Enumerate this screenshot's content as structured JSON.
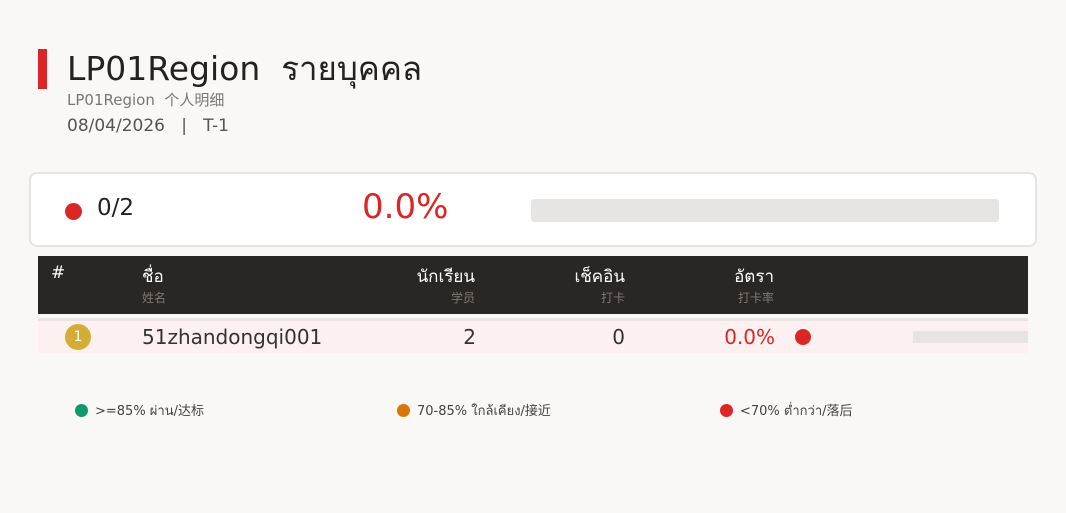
{
  "header": {
    "title": "LP01Region  รายบุคคล",
    "subtitle": "LP01Region  个人明细",
    "date": "08/04/2026",
    "separator": "|",
    "period": "T-1"
  },
  "summary": {
    "count": "0/2",
    "percent": "0.0%",
    "progress": 0,
    "status_color": "#dc2626"
  },
  "table": {
    "columns": [
      {
        "th": "#",
        "zh": ""
      },
      {
        "th": "ชื่อ",
        "zh": "姓名"
      },
      {
        "th": "นักเรียน",
        "zh": "学员"
      },
      {
        "th": "เช็คอิน",
        "zh": "打卡"
      },
      {
        "th": "อัตรา",
        "zh": "打卡率"
      }
    ],
    "rows": [
      {
        "rank": "1",
        "name": "51zhandongqi001",
        "students": "2",
        "checkin": "0",
        "rate": "0.0%",
        "status_color": "#dc2626",
        "progress": 0
      }
    ]
  },
  "legend": [
    {
      "label": ">=85% ผ่าน/达标",
      "color": "#0e9a6c"
    },
    {
      "label": "70-85% ใกล้เคียง/接近",
      "color": "#d97706"
    },
    {
      "label": "<70% ต่ำกว่า/落后",
      "color": "#dc2626"
    }
  ]
}
